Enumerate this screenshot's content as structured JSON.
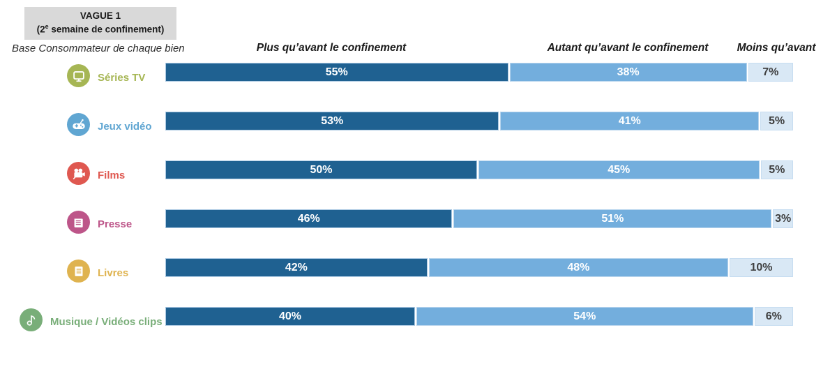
{
  "title_box": {
    "line1": "VAGUE 1",
    "line2_prefix": "(2",
    "line2_sup": "e",
    "line2_suffix": " semaine de confinement)"
  },
  "base_note": "Base Consommateur de chaque bien",
  "headers": [
    {
      "label": "Plus qu’avant le confinement"
    },
    {
      "label": "Autant qu’avant le confinement"
    },
    {
      "label": "Moins qu’avant"
    }
  ],
  "colors": {
    "title_box_bg": "#D9D9D9",
    "segment_plus": "#1F6191",
    "segment_autant": "#73AEDD",
    "segment_moins": "#D9E8F5",
    "value_text_light": "#FFFFFF",
    "value_text_dark": "#3F3F3F"
  },
  "chart_data": {
    "type": "bar",
    "orientation": "horizontal",
    "stacked": true,
    "normalized_to_100": true,
    "title": "VAGUE 1 (2e semaine de confinement)",
    "subtitle": "Base Consommateur de chaque bien",
    "xlim": [
      0,
      100
    ],
    "grid": false,
    "legend_position": "top",
    "value_format": "percent",
    "categories": [
      "Séries TV",
      "Jeux vidéo",
      "Films",
      "Presse",
      "Livres",
      "Musique / Vidéos clips"
    ],
    "category_colors": [
      "#A6B654",
      "#60A6D2",
      "#DF5850",
      "#BD5589",
      "#DFB34F",
      "#79AE79"
    ],
    "category_icons": [
      "tv-icon",
      "gamepad-icon",
      "film-camera-icon",
      "newspaper-icon",
      "book-icon",
      "music-note-icon"
    ],
    "series": [
      {
        "name": "Plus qu’avant le confinement",
        "color": "#1F6191",
        "values": [
          55,
          53,
          50,
          46,
          42,
          40
        ]
      },
      {
        "name": "Autant qu’avant le confinement",
        "color": "#73AEDD",
        "values": [
          38,
          41,
          45,
          51,
          48,
          54
        ]
      },
      {
        "name": "Moins qu’avant",
        "color": "#D9E8F5",
        "values": [
          7,
          5,
          5,
          3,
          10,
          6
        ]
      }
    ]
  }
}
